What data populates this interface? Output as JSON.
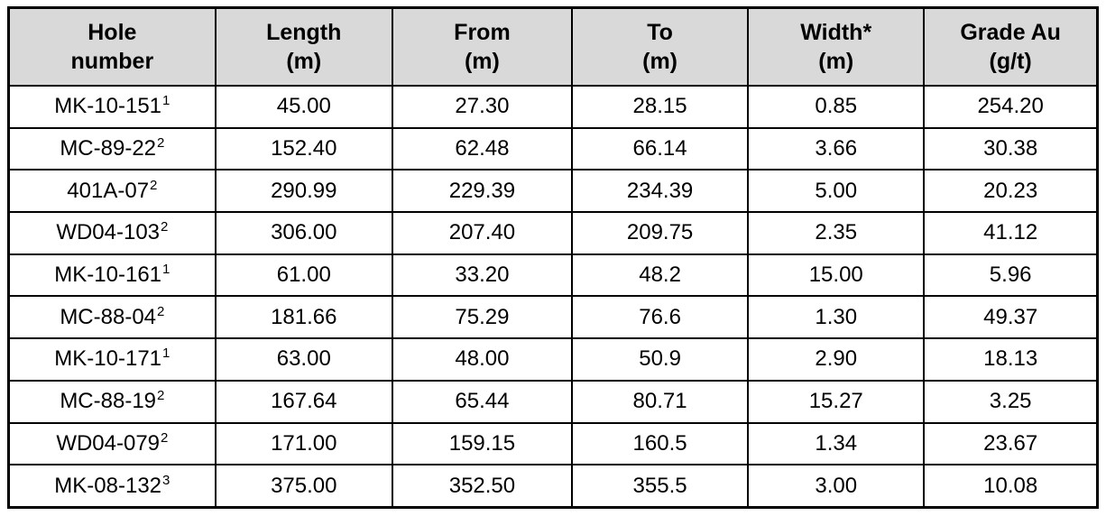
{
  "colors": {
    "header_bg": "#d9d9d9",
    "border": "#000000",
    "text": "#000000"
  },
  "table": {
    "columns": [
      {
        "line1": "Hole",
        "line2": "number"
      },
      {
        "line1": "Length",
        "line2": "(m)"
      },
      {
        "line1": "From",
        "line2": "(m)"
      },
      {
        "line1": "To",
        "line2": "(m)"
      },
      {
        "line1": "Width*",
        "line2": "(m)"
      },
      {
        "line1": "Grade Au",
        "line2": "(g/t)"
      }
    ],
    "rows": [
      {
        "hole": "MK-10-151",
        "hole_sup": "1",
        "length": "45.00",
        "from": "27.30",
        "to": "28.15",
        "width": "0.85",
        "grade": "254.20"
      },
      {
        "hole": "MC-89-22",
        "hole_sup": "2",
        "length": "152.40",
        "from": "62.48",
        "to": "66.14",
        "width": "3.66",
        "grade": "30.38"
      },
      {
        "hole": "401A-07",
        "hole_sup": "2",
        "length": "290.99",
        "from": "229.39",
        "to": "234.39",
        "width": "5.00",
        "grade": "20.23"
      },
      {
        "hole": "WD04-103",
        "hole_sup": "2",
        "length": "306.00",
        "from": "207.40",
        "to": "209.75",
        "width": "2.35",
        "grade": "41.12"
      },
      {
        "hole": "MK-10-161",
        "hole_sup": "1",
        "length": "61.00",
        "from": "33.20",
        "to": "48.2",
        "width": "15.00",
        "grade": "5.96"
      },
      {
        "hole": "MC-88-04",
        "hole_sup": "2",
        "length": "181.66",
        "from": "75.29",
        "to": "76.6",
        "width": "1.30",
        "grade": "49.37"
      },
      {
        "hole": "MK-10-171",
        "hole_sup": "1",
        "length": "63.00",
        "from": "48.00",
        "to": "50.9",
        "width": "2.90",
        "grade": "18.13"
      },
      {
        "hole": "MC-88-19",
        "hole_sup": "2",
        "length": "167.64",
        "from": "65.44",
        "to": "80.71",
        "width": "15.27",
        "grade": "3.25"
      },
      {
        "hole": "WD04-079",
        "hole_sup": "2",
        "length": "171.00",
        "from": "159.15",
        "to": "160.5",
        "width": "1.34",
        "grade": "23.67"
      },
      {
        "hole": "MK-08-132",
        "hole_sup": "3",
        "length": "375.00",
        "from": "352.50",
        "to": "355.5",
        "width": "3.00",
        "grade": "10.08"
      }
    ]
  }
}
